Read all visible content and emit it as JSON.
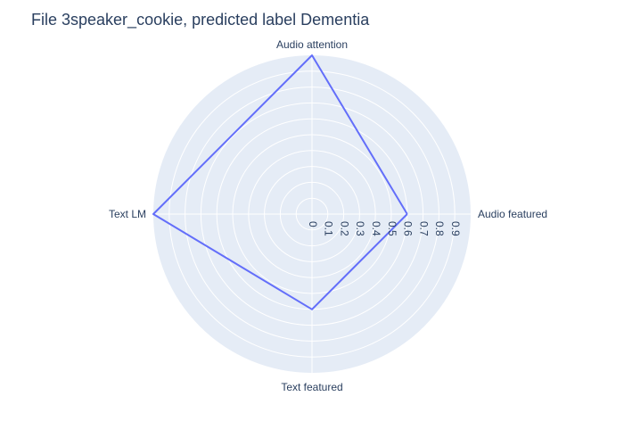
{
  "chart_data": {
    "type": "radar",
    "title": "File 3speaker_cookie, predicted label Dementia",
    "axes": [
      "Audio featured",
      "Audio attention",
      "Text LM",
      "Text featured"
    ],
    "series": [
      {
        "values": [
          0.6,
          1.0,
          1.0,
          0.6
        ]
      }
    ],
    "radial_range": [
      0,
      1
    ],
    "radial_ticks": [
      "0",
      "0.1",
      "0.2",
      "0.3",
      "0.4",
      "0.5",
      "0.6",
      "0.7",
      "0.8",
      "0.9"
    ],
    "radial_tick_values": [
      0,
      0.1,
      0.2,
      0.3,
      0.4,
      0.5,
      0.6,
      0.7,
      0.8,
      0.9
    ],
    "grid": true,
    "legend": "none",
    "colors": {
      "line": "#636efa",
      "polar_bg": "#e5ecf6",
      "grid": "#ffffff",
      "text": "#2a3f5f"
    }
  }
}
